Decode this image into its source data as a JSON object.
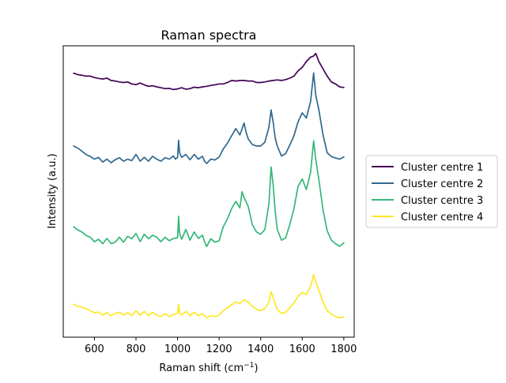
{
  "chart_data": {
    "type": "line",
    "title": "Raman spectra",
    "xlabel": "Raman shift (cm",
    "xlabel_sup": "−1",
    "xlabel_end": ")",
    "ylabel": "Intensity (a.u.)",
    "xlim": [
      450,
      1850
    ],
    "ylim": [
      0,
      100
    ],
    "xticks": [
      600,
      800,
      1000,
      1200,
      1400,
      1600,
      1800
    ],
    "yticks_shown": false,
    "grid": false,
    "legend_position": "right-outside",
    "series": [
      {
        "name": "Cluster centre 1",
        "color": "#440154",
        "points": [
          [
            500,
            90.6
          ],
          [
            520,
            90.1
          ],
          [
            540,
            89.9
          ],
          [
            560,
            89.6
          ],
          [
            580,
            89.6
          ],
          [
            600,
            89.1
          ],
          [
            620,
            88.8
          ],
          [
            640,
            88.6
          ],
          [
            660,
            88.9
          ],
          [
            680,
            88.1
          ],
          [
            700,
            87.9
          ],
          [
            720,
            87.6
          ],
          [
            740,
            87.4
          ],
          [
            760,
            87.6
          ],
          [
            780,
            86.9
          ],
          [
            800,
            86.7
          ],
          [
            820,
            87.2
          ],
          [
            840,
            86.6
          ],
          [
            860,
            86.1
          ],
          [
            880,
            86.3
          ],
          [
            900,
            85.9
          ],
          [
            920,
            85.6
          ],
          [
            940,
            85.3
          ],
          [
            960,
            85.4
          ],
          [
            980,
            85.0
          ],
          [
            1000,
            85.2
          ],
          [
            1020,
            85.6
          ],
          [
            1040,
            85.1
          ],
          [
            1060,
            85.3
          ],
          [
            1080,
            85.8
          ],
          [
            1100,
            85.6
          ],
          [
            1120,
            85.9
          ],
          [
            1140,
            86.1
          ],
          [
            1160,
            86.4
          ],
          [
            1180,
            86.6
          ],
          [
            1200,
            86.9
          ],
          [
            1220,
            86.9
          ],
          [
            1240,
            87.4
          ],
          [
            1260,
            88.1
          ],
          [
            1280,
            87.9
          ],
          [
            1300,
            88.1
          ],
          [
            1320,
            88.1
          ],
          [
            1340,
            87.9
          ],
          [
            1360,
            87.9
          ],
          [
            1380,
            87.4
          ],
          [
            1400,
            87.4
          ],
          [
            1420,
            87.6
          ],
          [
            1440,
            87.9
          ],
          [
            1460,
            88.1
          ],
          [
            1480,
            88.3
          ],
          [
            1500,
            88.1
          ],
          [
            1520,
            88.4
          ],
          [
            1540,
            88.9
          ],
          [
            1560,
            89.6
          ],
          [
            1580,
            91.4
          ],
          [
            1600,
            92.6
          ],
          [
            1620,
            94.6
          ],
          [
            1640,
            96.1
          ],
          [
            1655,
            96.5
          ],
          [
            1665,
            97.4
          ],
          [
            1680,
            94.6
          ],
          [
            1700,
            92.1
          ],
          [
            1720,
            89.6
          ],
          [
            1740,
            87.6
          ],
          [
            1760,
            86.9
          ],
          [
            1780,
            85.9
          ],
          [
            1800,
            85.7
          ]
        ]
      },
      {
        "name": "Cluster centre 2",
        "color": "#31688e",
        "points": [
          [
            500,
            65.6
          ],
          [
            520,
            64.9
          ],
          [
            540,
            63.8
          ],
          [
            560,
            62.7
          ],
          [
            580,
            62.0
          ],
          [
            600,
            61.1
          ],
          [
            620,
            61.7
          ],
          [
            640,
            60.1
          ],
          [
            660,
            61.1
          ],
          [
            680,
            59.9
          ],
          [
            700,
            60.9
          ],
          [
            720,
            61.6
          ],
          [
            740,
            60.4
          ],
          [
            760,
            61.1
          ],
          [
            780,
            60.6
          ],
          [
            800,
            62.7
          ],
          [
            820,
            60.4
          ],
          [
            840,
            61.7
          ],
          [
            860,
            60.4
          ],
          [
            880,
            62.1
          ],
          [
            900,
            61.1
          ],
          [
            920,
            60.4
          ],
          [
            940,
            61.6
          ],
          [
            960,
            61.1
          ],
          [
            980,
            62.2
          ],
          [
            990,
            61.1
          ],
          [
            1000,
            61.7
          ],
          [
            1005,
            67.6
          ],
          [
            1010,
            63.3
          ],
          [
            1020,
            61.7
          ],
          [
            1040,
            62.7
          ],
          [
            1060,
            60.9
          ],
          [
            1080,
            62.7
          ],
          [
            1100,
            61.1
          ],
          [
            1120,
            62.1
          ],
          [
            1130,
            60.4
          ],
          [
            1140,
            59.6
          ],
          [
            1160,
            61.1
          ],
          [
            1180,
            60.8
          ],
          [
            1200,
            61.8
          ],
          [
            1220,
            64.6
          ],
          [
            1240,
            66.6
          ],
          [
            1260,
            69.1
          ],
          [
            1280,
            71.6
          ],
          [
            1300,
            69.4
          ],
          [
            1320,
            73.5
          ],
          [
            1330,
            70.3
          ],
          [
            1340,
            68.1
          ],
          [
            1360,
            66.1
          ],
          [
            1380,
            65.6
          ],
          [
            1400,
            65.6
          ],
          [
            1420,
            66.9
          ],
          [
            1440,
            72.2
          ],
          [
            1450,
            78.0
          ],
          [
            1460,
            73.8
          ],
          [
            1470,
            68.3
          ],
          [
            1480,
            65.6
          ],
          [
            1500,
            62.2
          ],
          [
            1520,
            63.0
          ],
          [
            1540,
            65.9
          ],
          [
            1560,
            69.1
          ],
          [
            1580,
            73.9
          ],
          [
            1600,
            77.0
          ],
          [
            1620,
            75.2
          ],
          [
            1640,
            80.9
          ],
          [
            1655,
            90.7
          ],
          [
            1665,
            83.1
          ],
          [
            1680,
            78.0
          ],
          [
            1700,
            69.4
          ],
          [
            1720,
            63.3
          ],
          [
            1740,
            62.0
          ],
          [
            1760,
            61.5
          ],
          [
            1780,
            61.1
          ],
          [
            1800,
            61.9
          ]
        ]
      },
      {
        "name": "Cluster centre 3",
        "color": "#35b779",
        "points": [
          [
            500,
            37.9
          ],
          [
            520,
            36.8
          ],
          [
            540,
            36.1
          ],
          [
            560,
            34.9
          ],
          [
            580,
            34.3
          ],
          [
            600,
            32.8
          ],
          [
            620,
            33.6
          ],
          [
            640,
            32.1
          ],
          [
            660,
            33.9
          ],
          [
            680,
            32.1
          ],
          [
            700,
            32.6
          ],
          [
            720,
            34.3
          ],
          [
            740,
            32.6
          ],
          [
            760,
            34.6
          ],
          [
            780,
            33.8
          ],
          [
            800,
            35.6
          ],
          [
            820,
            32.8
          ],
          [
            840,
            35.3
          ],
          [
            860,
            33.8
          ],
          [
            880,
            35.0
          ],
          [
            900,
            34.3
          ],
          [
            920,
            32.8
          ],
          [
            940,
            34.3
          ],
          [
            960,
            33.1
          ],
          [
            980,
            33.9
          ],
          [
            1000,
            34.1
          ],
          [
            1005,
            41.5
          ],
          [
            1010,
            35.6
          ],
          [
            1020,
            33.6
          ],
          [
            1040,
            37.0
          ],
          [
            1060,
            33.3
          ],
          [
            1080,
            36.1
          ],
          [
            1100,
            33.9
          ],
          [
            1120,
            35.0
          ],
          [
            1130,
            32.8
          ],
          [
            1140,
            31.1
          ],
          [
            1160,
            33.8
          ],
          [
            1180,
            32.6
          ],
          [
            1200,
            33.1
          ],
          [
            1220,
            37.9
          ],
          [
            1240,
            40.6
          ],
          [
            1260,
            44.1
          ],
          [
            1280,
            46.6
          ],
          [
            1300,
            44.4
          ],
          [
            1310,
            49.9
          ],
          [
            1320,
            48.0
          ],
          [
            1340,
            44.9
          ],
          [
            1360,
            38.6
          ],
          [
            1380,
            36.1
          ],
          [
            1400,
            35.3
          ],
          [
            1420,
            37.0
          ],
          [
            1440,
            45.9
          ],
          [
            1450,
            58.4
          ],
          [
            1460,
            52.3
          ],
          [
            1470,
            43.1
          ],
          [
            1480,
            37.0
          ],
          [
            1500,
            33.3
          ],
          [
            1520,
            34.1
          ],
          [
            1540,
            38.6
          ],
          [
            1560,
            44.1
          ],
          [
            1580,
            51.8
          ],
          [
            1600,
            54.3
          ],
          [
            1620,
            50.7
          ],
          [
            1640,
            56.5
          ],
          [
            1655,
            67.4
          ],
          [
            1665,
            60.9
          ],
          [
            1680,
            54.1
          ],
          [
            1700,
            43.6
          ],
          [
            1720,
            36.5
          ],
          [
            1740,
            33.3
          ],
          [
            1760,
            32.1
          ],
          [
            1780,
            31.2
          ],
          [
            1800,
            32.4
          ]
        ]
      },
      {
        "name": "Cluster centre 4",
        "color": "#fde725",
        "points": [
          [
            500,
            11.3
          ],
          [
            520,
            10.6
          ],
          [
            540,
            10.3
          ],
          [
            560,
            9.8
          ],
          [
            580,
            9.1
          ],
          [
            600,
            8.4
          ],
          [
            620,
            8.6
          ],
          [
            640,
            7.6
          ],
          [
            660,
            8.4
          ],
          [
            680,
            7.4
          ],
          [
            700,
            8.1
          ],
          [
            720,
            8.6
          ],
          [
            740,
            7.6
          ],
          [
            760,
            8.4
          ],
          [
            780,
            7.4
          ],
          [
            800,
            9.1
          ],
          [
            820,
            7.6
          ],
          [
            840,
            8.9
          ],
          [
            860,
            7.4
          ],
          [
            880,
            8.6
          ],
          [
            900,
            7.6
          ],
          [
            920,
            7.1
          ],
          [
            940,
            8.1
          ],
          [
            960,
            7.1
          ],
          [
            980,
            7.8
          ],
          [
            1000,
            8.1
          ],
          [
            1005,
            11.3
          ],
          [
            1010,
            8.4
          ],
          [
            1020,
            7.6
          ],
          [
            1040,
            8.9
          ],
          [
            1060,
            7.4
          ],
          [
            1080,
            8.6
          ],
          [
            1100,
            7.4
          ],
          [
            1120,
            8.1
          ],
          [
            1140,
            6.6
          ],
          [
            1160,
            7.4
          ],
          [
            1180,
            7.1
          ],
          [
            1200,
            7.6
          ],
          [
            1220,
            9.1
          ],
          [
            1240,
            10.1
          ],
          [
            1260,
            11.1
          ],
          [
            1280,
            12.1
          ],
          [
            1300,
            11.6
          ],
          [
            1320,
            12.8
          ],
          [
            1340,
            12.1
          ],
          [
            1360,
            10.6
          ],
          [
            1380,
            9.6
          ],
          [
            1400,
            9.1
          ],
          [
            1420,
            9.8
          ],
          [
            1440,
            12.1
          ],
          [
            1450,
            15.6
          ],
          [
            1460,
            13.8
          ],
          [
            1470,
            11.3
          ],
          [
            1480,
            9.6
          ],
          [
            1500,
            8.1
          ],
          [
            1520,
            8.6
          ],
          [
            1540,
            10.1
          ],
          [
            1560,
            11.8
          ],
          [
            1580,
            14.1
          ],
          [
            1600,
            15.3
          ],
          [
            1620,
            14.6
          ],
          [
            1640,
            17.4
          ],
          [
            1655,
            21.4
          ],
          [
            1665,
            18.9
          ],
          [
            1680,
            16.1
          ],
          [
            1700,
            12.1
          ],
          [
            1720,
            9.1
          ],
          [
            1740,
            7.9
          ],
          [
            1760,
            7.1
          ],
          [
            1780,
            6.6
          ],
          [
            1800,
            6.9
          ]
        ]
      }
    ]
  }
}
